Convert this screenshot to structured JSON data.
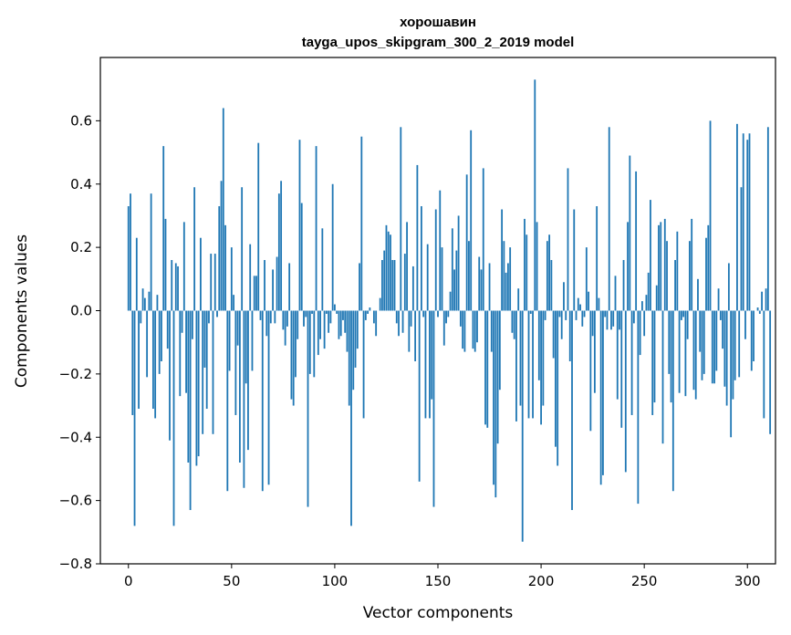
{
  "chart_data": {
    "type": "bar",
    "title_line1": "хорошавин",
    "title_line2": "tayga_upos_skipgram_300_2_2019 model",
    "xlabel": "Vector components",
    "ylabel": "Components values",
    "xlim": [
      -13.6,
      313.6
    ],
    "ylim": [
      -0.8,
      0.8
    ],
    "xticks": [
      0,
      50,
      100,
      150,
      200,
      250,
      300
    ],
    "xtick_labels": [
      "0",
      "50",
      "100",
      "150",
      "200",
      "250",
      "300"
    ],
    "yticks": [
      -0.8,
      -0.6,
      -0.4,
      -0.2,
      0.0,
      0.2,
      0.4,
      0.6
    ],
    "ytick_labels": [
      "−0.8",
      "−0.6",
      "−0.4",
      "−0.2",
      "0.0",
      "0.2",
      "0.4",
      "0.6"
    ],
    "bar_color": "#1f77b4",
    "values": [
      0.33,
      0.37,
      -0.33,
      -0.68,
      0.23,
      -0.31,
      -0.04,
      0.07,
      0.04,
      -0.21,
      0.06,
      0.37,
      -0.31,
      -0.34,
      0.05,
      -0.2,
      -0.16,
      0.52,
      0.29,
      -0.12,
      -0.41,
      0.16,
      -0.68,
      0.15,
      0.14,
      -0.27,
      -0.07,
      0.28,
      -0.26,
      -0.48,
      -0.63,
      -0.09,
      0.39,
      -0.49,
      -0.46,
      0.23,
      -0.39,
      -0.18,
      -0.31,
      -0.04,
      0.18,
      -0.39,
      0.18,
      -0.02,
      0.33,
      0.41,
      0.64,
      0.27,
      -0.57,
      -0.19,
      0.2,
      0.05,
      -0.33,
      -0.11,
      -0.48,
      0.39,
      -0.56,
      -0.23,
      -0.44,
      0.21,
      -0.19,
      0.11,
      0.11,
      0.53,
      -0.03,
      -0.57,
      0.16,
      -0.08,
      -0.55,
      -0.04,
      0.13,
      -0.04,
      0.17,
      0.37,
      0.41,
      -0.06,
      -0.11,
      -0.05,
      0.15,
      -0.28,
      -0.3,
      -0.21,
      -0.09,
      0.54,
      0.34,
      -0.05,
      -0.02,
      -0.62,
      -0.2,
      -0.01,
      -0.21,
      0.52,
      -0.14,
      -0.09,
      0.26,
      -0.12,
      -0.01,
      -0.07,
      -0.04,
      0.4,
      0.02,
      -0.01,
      -0.09,
      -0.08,
      -0.03,
      -0.07,
      -0.13,
      -0.3,
      -0.68,
      -0.25,
      -0.18,
      -0.12,
      0.15,
      0.55,
      -0.34,
      -0.03,
      -0.01,
      0.01,
      0.0,
      -0.04,
      -0.08,
      0.0,
      0.04,
      0.16,
      0.19,
      0.27,
      0.25,
      0.24,
      0.16,
      0.16,
      -0.04,
      -0.08,
      0.58,
      -0.07,
      0.18,
      0.28,
      -0.13,
      -0.05,
      0.14,
      -0.16,
      0.46,
      -0.54,
      0.33,
      -0.02,
      -0.34,
      0.21,
      -0.34,
      -0.28,
      -0.62,
      0.32,
      -0.02,
      0.38,
      0.2,
      -0.11,
      -0.04,
      -0.02,
      0.06,
      0.26,
      0.13,
      0.19,
      0.3,
      -0.05,
      -0.12,
      -0.13,
      0.43,
      0.22,
      0.57,
      -0.12,
      -0.13,
      -0.1,
      0.17,
      0.13,
      0.45,
      -0.36,
      -0.37,
      0.15,
      -0.13,
      -0.55,
      -0.59,
      -0.42,
      -0.25,
      0.32,
      0.22,
      0.12,
      0.15,
      0.2,
      -0.07,
      -0.09,
      -0.35,
      0.07,
      -0.3,
      -0.73,
      0.29,
      0.24,
      -0.34,
      -0.01,
      -0.34,
      0.73,
      0.28,
      -0.22,
      -0.36,
      -0.3,
      -0.03,
      0.22,
      0.24,
      0.16,
      -0.15,
      -0.43,
      -0.49,
      -0.02,
      -0.09,
      0.09,
      -0.03,
      0.45,
      -0.16,
      -0.63,
      0.32,
      -0.03,
      0.04,
      0.02,
      -0.05,
      -0.02,
      0.2,
      0.06,
      -0.38,
      -0.08,
      -0.26,
      0.33,
      0.04,
      -0.55,
      -0.52,
      -0.02,
      -0.06,
      0.58,
      -0.06,
      -0.05,
      0.11,
      -0.28,
      -0.06,
      -0.37,
      0.16,
      -0.51,
      0.28,
      0.49,
      -0.33,
      -0.04,
      0.44,
      -0.61,
      -0.14,
      0.03,
      -0.08,
      0.05,
      0.12,
      0.35,
      -0.33,
      -0.29,
      0.08,
      0.27,
      0.28,
      -0.42,
      0.29,
      0.22,
      -0.2,
      -0.29,
      -0.57,
      0.16,
      0.25,
      -0.26,
      -0.03,
      -0.02,
      -0.27,
      -0.09,
      0.22,
      0.29,
      -0.25,
      -0.28,
      0.1,
      -0.13,
      -0.22,
      -0.2,
      0.23,
      0.27,
      0.6,
      -0.23,
      -0.23,
      -0.19,
      0.07,
      -0.03,
      -0.12,
      -0.24,
      -0.3,
      0.15,
      -0.4,
      -0.28,
      -0.22,
      0.59,
      -0.21,
      0.39,
      0.56,
      -0.09,
      0.54,
      0.56,
      -0.19,
      -0.16,
      0.0,
      0.01,
      -0.01,
      0.06,
      -0.34,
      0.07,
      0.58,
      -0.39
    ]
  }
}
